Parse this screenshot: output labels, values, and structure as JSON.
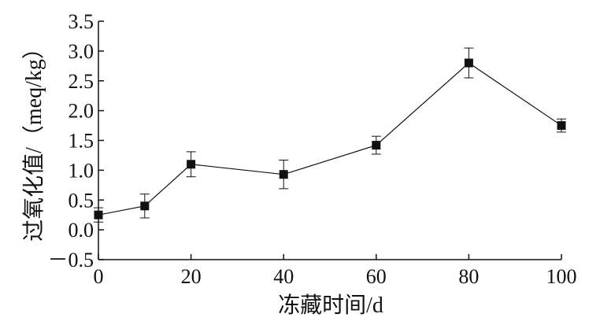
{
  "chart_data": {
    "type": "line",
    "title": "",
    "xlabel": "冻藏时间/d",
    "ylabel": "过氧化值/（meq/kg）",
    "x": [
      0,
      10,
      20,
      40,
      60,
      80,
      100
    ],
    "series": [
      {
        "values": [
          0.25,
          0.4,
          1.1,
          0.93,
          1.42,
          2.8,
          1.75
        ],
        "error": [
          0.12,
          0.2,
          0.21,
          0.24,
          0.15,
          0.25,
          0.11
        ],
        "color": "#111111",
        "marker": "square"
      }
    ],
    "xlim": [
      0,
      100
    ],
    "ylim": [
      -0.5,
      3.5
    ],
    "xticks": [
      0,
      20,
      40,
      60,
      80,
      100
    ],
    "yticks": [
      -0.5,
      0.0,
      0.5,
      1.0,
      1.5,
      2.0,
      2.5,
      3.0,
      3.5
    ],
    "xtick_labels": [
      "0",
      "20",
      "40",
      "60",
      "80",
      "100"
    ],
    "ytick_labels": [
      "－0.5",
      "0.0",
      "0.5",
      "1.0",
      "1.5",
      "2.0",
      "2.5",
      "3.0",
      "3.5"
    ],
    "grid": false,
    "legend": "none"
  }
}
